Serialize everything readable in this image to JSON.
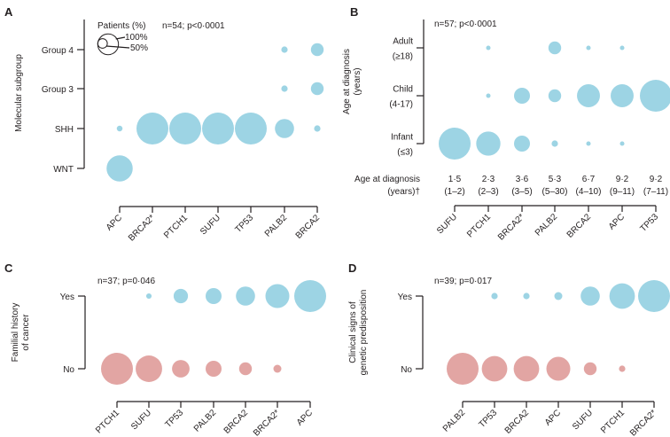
{
  "colors": {
    "yes_blue": "#9dd4e4",
    "no_pink": "#e2a5a3",
    "axis": "#231f20"
  },
  "chart_data": [
    {
      "panel": "A",
      "type": "scatter",
      "encoding": "bubble size = patients (%)",
      "ylabel": [
        "Molecular subgroup"
      ],
      "annotation": "n=54; p<0·0001",
      "legend": {
        "title": "Patients (%)",
        "entries": [
          "100%",
          "50%"
        ],
        "values": [
          100,
          50
        ]
      },
      "categories": [
        "APC",
        "BRCA2*",
        "PTCH1",
        "SUFU",
        "TP53",
        "PALB2",
        "BRCA2"
      ],
      "rows": [
        {
          "label": [
            "Group 4"
          ],
          "color": "#9dd4e4",
          "values": [
            0,
            0,
            0,
            0,
            0,
            20,
            40
          ]
        },
        {
          "label": [
            "Group 3"
          ],
          "color": "#9dd4e4",
          "values": [
            0,
            0,
            0,
            0,
            0,
            20,
            40
          ]
        },
        {
          "label": [
            "SHH"
          ],
          "color": "#9dd4e4",
          "values": [
            18,
            100,
            100,
            100,
            100,
            60,
            20
          ]
        },
        {
          "label": [
            "WNT"
          ],
          "color": "#9dd4e4",
          "values": [
            82,
            0,
            0,
            0,
            0,
            0,
            0
          ]
        }
      ]
    },
    {
      "panel": "B",
      "type": "scatter",
      "encoding": "bubble size = patients (%)",
      "ylabel": [
        "Age at diagnosis",
        "(years)"
      ],
      "annotation": "n=57; p<0·0001",
      "categories": [
        "SUFU",
        "PTCH1",
        "BRCA2*",
        "PALB2",
        "BRCA2",
        "APC",
        "TP53"
      ],
      "extra_row": {
        "label": [
          "Age at diagnosis",
          "(years)†"
        ],
        "median": [
          "1·5",
          "2·3",
          "3·6",
          "5·3",
          "6·7",
          "9·2",
          "9·2"
        ],
        "range": [
          "(1–2)",
          "(2–3)",
          "(3–5)",
          "(5–30)",
          "(4–10)",
          "(9–11)",
          "(7–11)"
        ]
      },
      "rows": [
        {
          "label": [
            "Adult",
            "(≥18)"
          ],
          "color": "#9dd4e4",
          "values": [
            0,
            12,
            0,
            40,
            14,
            14,
            0
          ]
        },
        {
          "label": [
            "Child",
            "(4-17)"
          ],
          "color": "#9dd4e4",
          "values": [
            0,
            12,
            50,
            40,
            72,
            72,
            100
          ]
        },
        {
          "label": [
            "Infant",
            "(≤3)"
          ],
          "color": "#9dd4e4",
          "values": [
            100,
            76,
            50,
            20,
            14,
            14,
            0
          ]
        }
      ]
    },
    {
      "panel": "C",
      "type": "scatter",
      "encoding": "bubble size = patients (%)",
      "ylabel": [
        "Familial history",
        "of cancer"
      ],
      "annotation": "n=37; p=0·046",
      "categories": [
        "PTCH1",
        "SUFU",
        "TP53",
        "PALB2",
        "BRCA2",
        "BRCA2*",
        "APC"
      ],
      "rows": [
        {
          "label": [
            "Yes"
          ],
          "color": "#9dd4e4",
          "values": [
            0,
            17,
            45,
            50,
            60,
            75,
            100
          ]
        },
        {
          "label": [
            "No"
          ],
          "color": "#e2a5a3",
          "values": [
            100,
            83,
            55,
            50,
            40,
            25,
            0
          ]
        }
      ]
    },
    {
      "panel": "D",
      "type": "scatter",
      "encoding": "bubble size = patients (%)",
      "ylabel": [
        "Clinical signs of",
        "genetic predisposition"
      ],
      "annotation": "n=39; p=0·017",
      "categories": [
        "PALB2",
        "TP53",
        "BRCA2",
        "APC",
        "SUFU",
        "PTCH1",
        "BRCA2*"
      ],
      "rows": [
        {
          "label": [
            "Yes"
          ],
          "color": "#9dd4e4",
          "values": [
            0,
            20,
            20,
            25,
            60,
            80,
            100
          ]
        },
        {
          "label": [
            "No"
          ],
          "color": "#e2a5a3",
          "values": [
            100,
            80,
            80,
            75,
            40,
            20,
            0
          ]
        }
      ]
    }
  ]
}
